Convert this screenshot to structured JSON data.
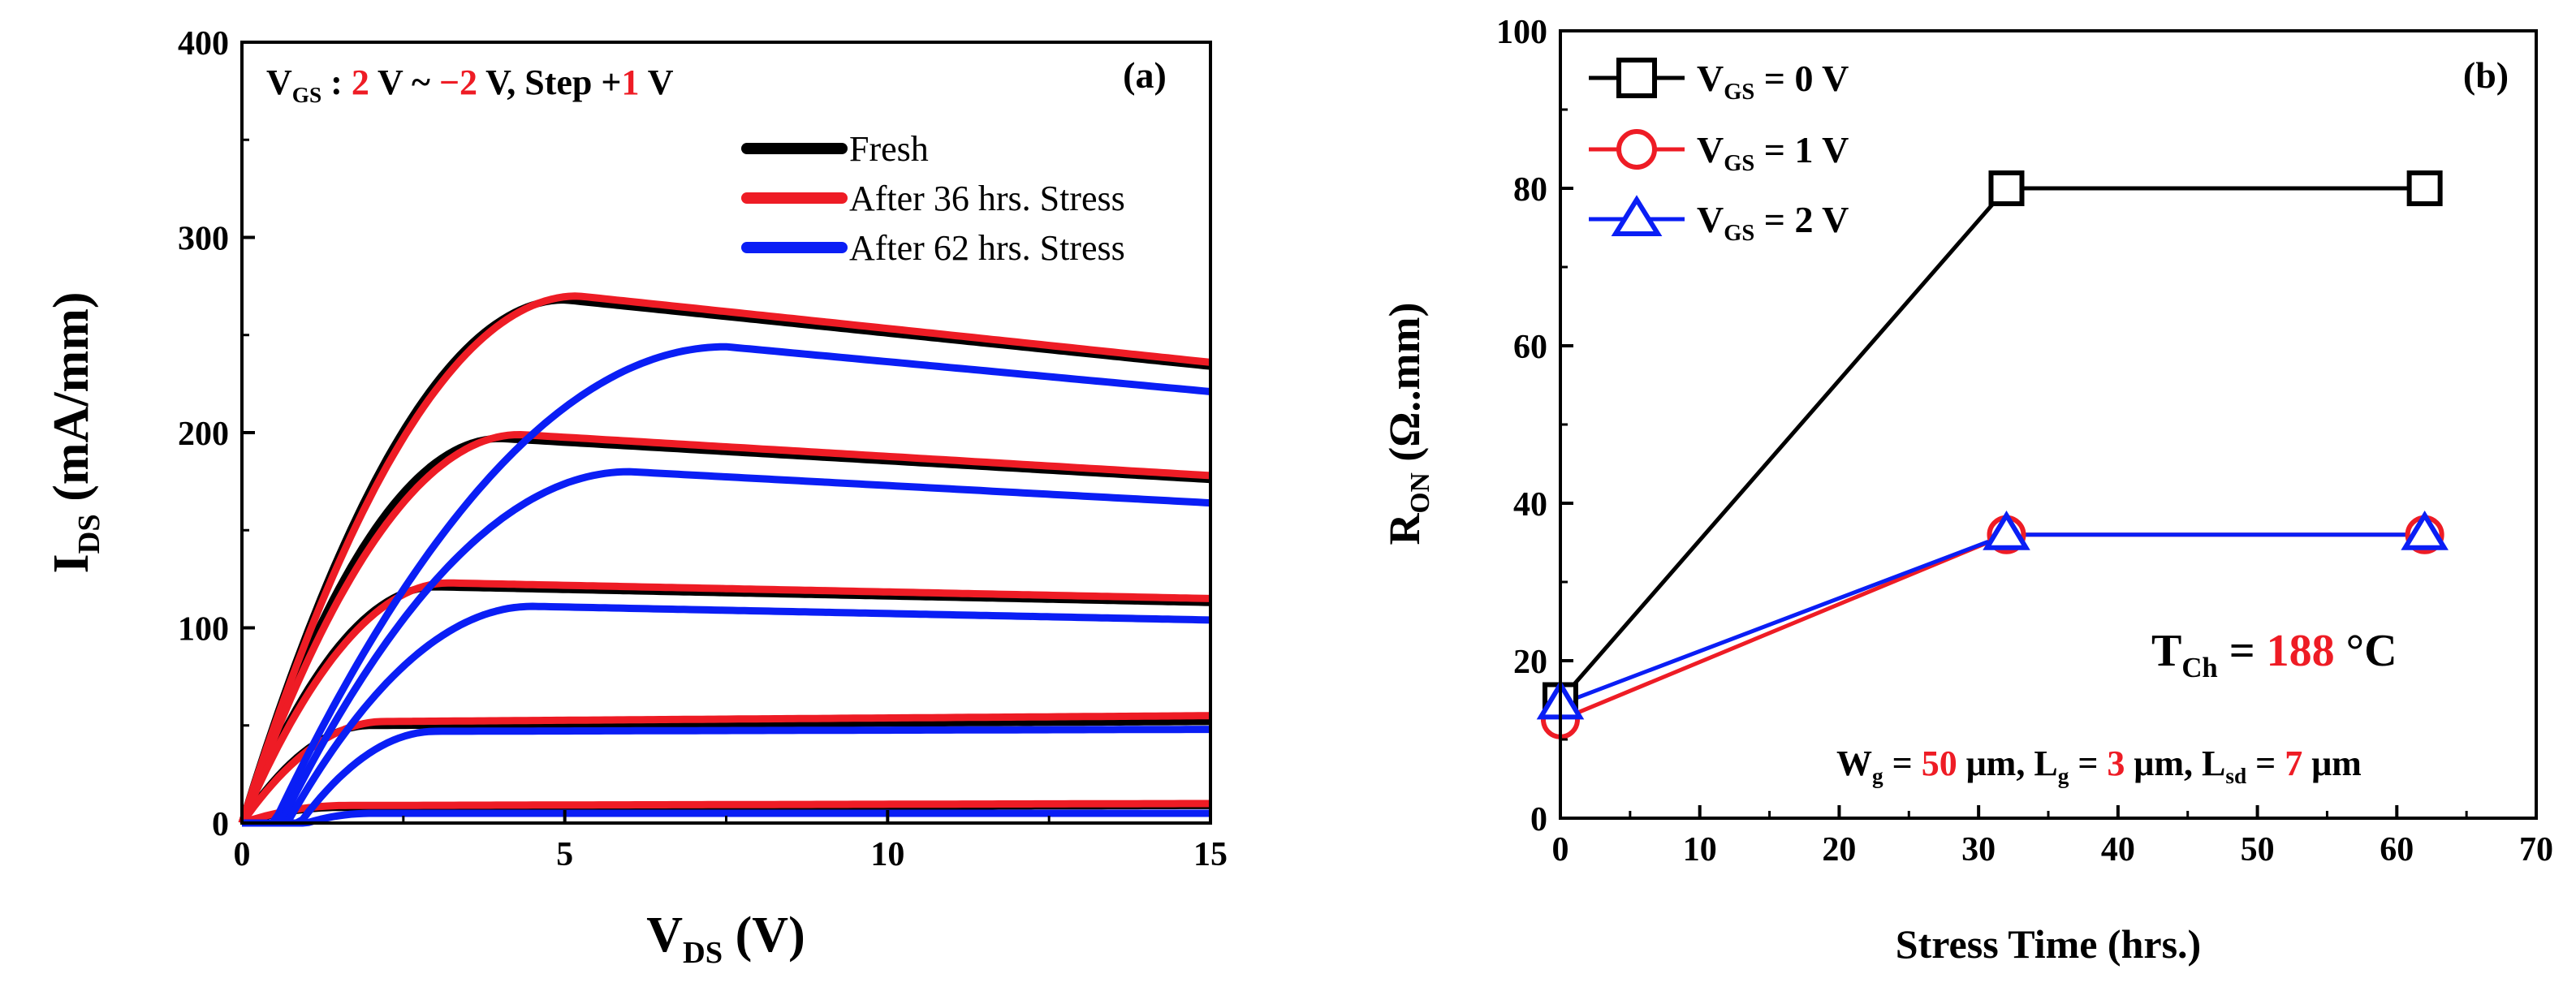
{
  "chart_data": [
    {
      "type": "line",
      "panel_label": "(a)",
      "xlabel": {
        "main": "V",
        "sub": "DS",
        "unit": " (V)"
      },
      "ylabel": {
        "main": "I",
        "sub": "DS",
        "unit": " (mA/mm)"
      },
      "xlim": [
        0,
        15
      ],
      "ylim": [
        0,
        400
      ],
      "xticks": [
        0,
        5,
        10,
        15
      ],
      "yticks": [
        0,
        100,
        200,
        300,
        400
      ],
      "xtick_labels": [
        "0",
        "5",
        "10",
        "15"
      ],
      "ytick_labels": [
        "0",
        "100",
        "200",
        "300",
        "400"
      ],
      "annotation": {
        "v": "V",
        "gs": "GS",
        "colon": " :  ",
        "start": "2",
        "mid1": " V ~ ",
        "end": "−2",
        "mid2": " V, Step +",
        "step": "1",
        "tail": " V"
      },
      "legend_position": "top-right",
      "series": [
        {
          "name": "Fresh",
          "color": "#000000",
          "curves": [
            {
              "vgs": 2,
              "knee": 5.0,
              "peak": 268,
              "end": 234,
              "vth": 0.0
            },
            {
              "vgs": 1,
              "knee": 4.0,
              "peak": 197,
              "end": 176,
              "vth": 0.0
            },
            {
              "vgs": 0,
              "knee": 3.0,
              "peak": 121,
              "end": 113,
              "vth": 0.0
            },
            {
              "vgs": -1,
              "knee": 2.0,
              "peak": 50,
              "end": 52,
              "vth": 0.0
            },
            {
              "vgs": -2,
              "knee": 1.5,
              "peak": 8,
              "end": 9,
              "vth": 0.0
            }
          ]
        },
        {
          "name": "After 36 hrs. Stress",
          "color": "#ee1c25",
          "curves": [
            {
              "vgs": 2,
              "knee": 5.2,
              "peak": 270,
              "end": 236,
              "vth": 0.0
            },
            {
              "vgs": 1,
              "knee": 4.3,
              "peak": 199,
              "end": 178,
              "vth": 0.0
            },
            {
              "vgs": 0,
              "knee": 3.2,
              "peak": 123,
              "end": 115,
              "vth": 0.0
            },
            {
              "vgs": -1,
              "knee": 2.2,
              "peak": 52,
              "end": 55,
              "vth": 0.0
            },
            {
              "vgs": -2,
              "knee": 1.6,
              "peak": 9,
              "end": 10,
              "vth": 0.0
            }
          ]
        },
        {
          "name": "After 62 hrs. Stress",
          "color": "#0a1ef5",
          "curves": [
            {
              "vgs": 2,
              "knee": 7.5,
              "peak": 244,
              "end": 221,
              "vth": 0.5
            },
            {
              "vgs": 1,
              "knee": 6.0,
              "peak": 180,
              "end": 164,
              "vth": 0.6
            },
            {
              "vgs": 0,
              "knee": 4.5,
              "peak": 111,
              "end": 104,
              "vth": 0.7
            },
            {
              "vgs": -1,
              "knee": 3.0,
              "peak": 47,
              "end": 48,
              "vth": 0.9
            },
            {
              "vgs": -2,
              "knee": 2.0,
              "peak": 5,
              "end": 5,
              "vth": 1.0
            }
          ]
        }
      ]
    },
    {
      "type": "line",
      "panel_label": "(b)",
      "xlabel": {
        "main": "Stress Time (hrs.)"
      },
      "ylabel": {
        "main": "R",
        "sub": "ON",
        "unit": " (Ω..mm)"
      },
      "xlim": [
        0,
        70
      ],
      "ylim": [
        0,
        100
      ],
      "xticks": [
        0,
        10,
        20,
        30,
        40,
        50,
        60,
        70
      ],
      "yticks": [
        0,
        20,
        40,
        60,
        80,
        100
      ],
      "xtick_labels": [
        "0",
        "10",
        "20",
        "30",
        "40",
        "50",
        "60",
        "70"
      ],
      "ytick_labels": [
        "0",
        "20",
        "40",
        "60",
        "80",
        "100"
      ],
      "legend_position": "top-left",
      "series": [
        {
          "name_main": "V",
          "name_sub": "GS",
          "name_tail": " = 0 V",
          "color": "#000000",
          "marker": "square",
          "x": [
            0,
            32,
            62
          ],
          "y": [
            15,
            80,
            80
          ]
        },
        {
          "name_main": "V",
          "name_sub": "GS",
          "name_tail": " = 1 V",
          "color": "#ee1c25",
          "marker": "circle",
          "x": [
            0,
            32,
            62
          ],
          "y": [
            12.5,
            36,
            36
          ]
        },
        {
          "name_main": "V",
          "name_sub": "GS",
          "name_tail": " = 2 V",
          "color": "#0a1ef5",
          "marker": "triangle",
          "x": [
            0,
            32,
            62
          ],
          "y": [
            14.5,
            36,
            36
          ]
        }
      ],
      "annotations": {
        "tch": {
          "t": "T",
          "sub": "Ch",
          "eq": " = ",
          "val": "188",
          "unit": " °C"
        },
        "dims": {
          "w": "W",
          "wsub": "g",
          "eq1": " = ",
          "wval": "50",
          "u1": " μm, ",
          "l": "L",
          "lsub": "g",
          "eq2": " = ",
          "lval": "3",
          "u2": " μm, ",
          "ls": "L",
          "lssub": "sd",
          "eq3": " = ",
          "lsval": "7",
          "u3": " μm"
        }
      }
    }
  ]
}
